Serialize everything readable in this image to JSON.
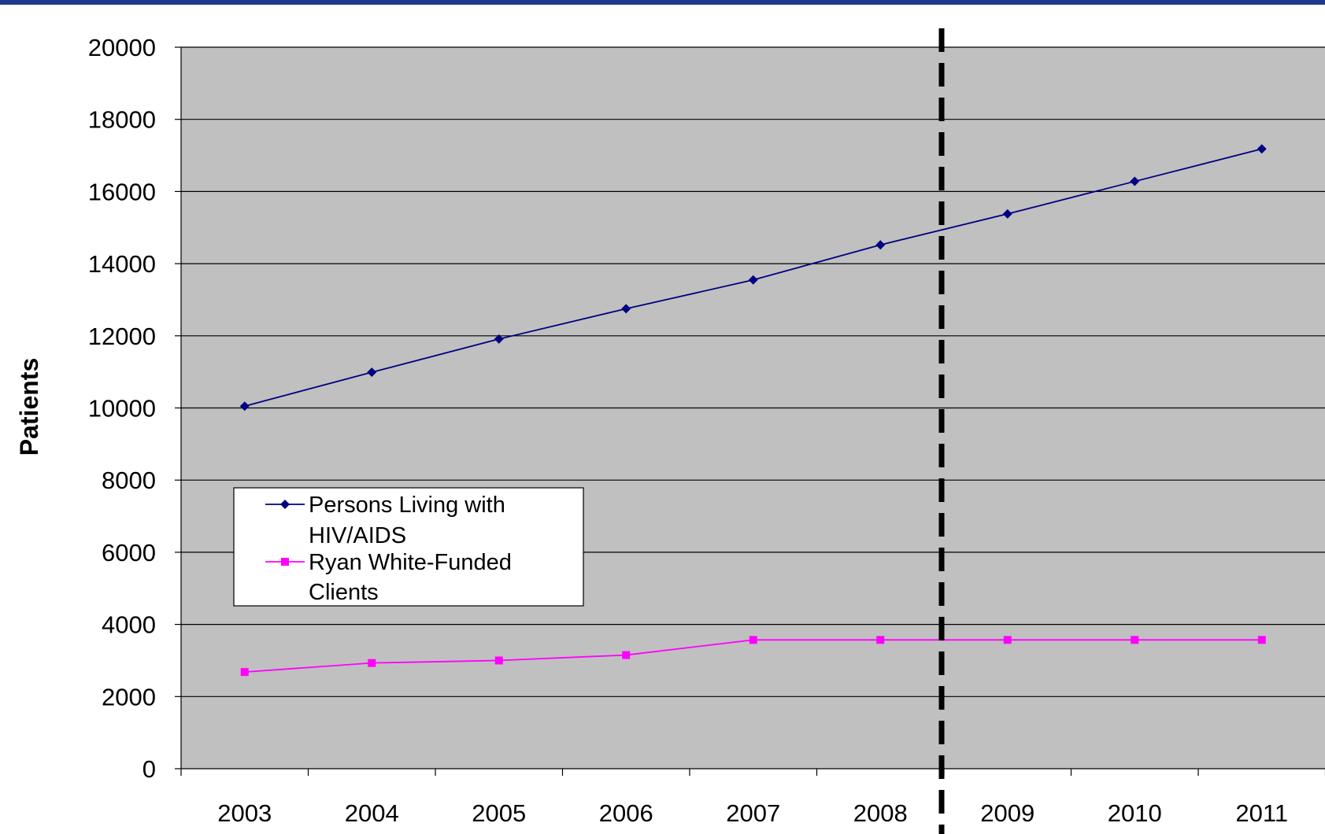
{
  "chart_data": {
    "type": "line",
    "title": "",
    "xlabel": "",
    "ylabel": "Patients",
    "categories": [
      "2003",
      "2004",
      "2005",
      "2006",
      "2007",
      "2008",
      "2009",
      "2010",
      "2011"
    ],
    "ylim": [
      0,
      20000
    ],
    "yticks": [
      0,
      2000,
      4000,
      6000,
      8000,
      10000,
      12000,
      14000,
      16000,
      18000,
      20000
    ],
    "grid": true,
    "legend_position": "left-middle",
    "series": [
      {
        "name": "Persons Living with HIV/AIDS",
        "legend_lines": [
          "Persons Living with",
          "HIV/AIDS"
        ],
        "color": "#000080",
        "marker": "diamond",
        "values": [
          10050,
          10990,
          11910,
          12750,
          13550,
          14520,
          15380,
          16280,
          17180
        ]
      },
      {
        "name": "Ryan White-Funded Clients",
        "legend_lines": [
          "Ryan White-Funded",
          "Clients"
        ],
        "color": "#ff00ff",
        "marker": "square",
        "values": [
          2680,
          2930,
          3000,
          3150,
          3570,
          3570,
          3570,
          3570,
          3570
        ]
      }
    ],
    "annotations": [
      {
        "type": "vertical-dashed-line",
        "between": [
          "2008",
          "2009"
        ],
        "color": "#000000"
      }
    ],
    "plot_background": "#c0c0c0"
  }
}
